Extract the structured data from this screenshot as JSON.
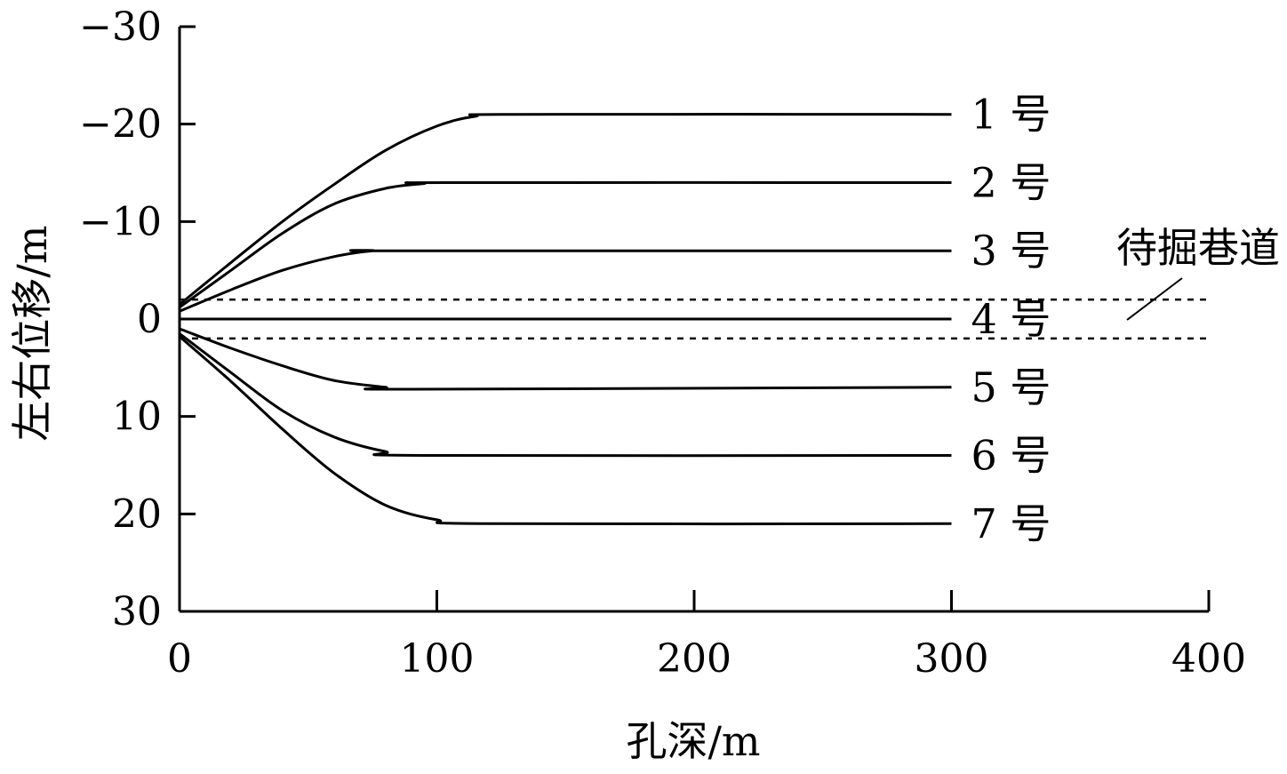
{
  "chart_data": {
    "type": "line",
    "xlabel": "孔深/m",
    "ylabel": "左右位移/m",
    "xlim": [
      0,
      400
    ],
    "ylim": [
      -30,
      30
    ],
    "y_inverted": true,
    "x_ticks": [
      0,
      100,
      200,
      300,
      400
    ],
    "y_ticks": [
      -30,
      -20,
      -10,
      0,
      10,
      20,
      30
    ],
    "x_tick_labels": [
      "0",
      "100",
      "200",
      "300",
      "400"
    ],
    "y_tick_labels": [
      "−30",
      "−20",
      "−10",
      "0",
      "10",
      "20",
      "30"
    ],
    "grid": false,
    "series": [
      {
        "name": "1 号",
        "x": [
          0,
          20,
          40,
          60,
          80,
          100,
          115,
          130,
          300
        ],
        "y": [
          -1.5,
          -5.8,
          -10,
          -13.8,
          -17.3,
          -19.8,
          -20.8,
          -21,
          -21
        ]
      },
      {
        "name": "2 号",
        "x": [
          0,
          20,
          40,
          60,
          80,
          95,
          105,
          300
        ],
        "y": [
          -1.2,
          -5,
          -8.8,
          -11.8,
          -13.4,
          -13.9,
          -14,
          -14
        ]
      },
      {
        "name": "3 号",
        "x": [
          0,
          20,
          40,
          60,
          75,
          85,
          300
        ],
        "y": [
          -0.8,
          -3,
          -5,
          -6.4,
          -7,
          -7,
          -7
        ]
      },
      {
        "name": "4 号",
        "x": [
          0,
          300
        ],
        "y": [
          0,
          0
        ]
      },
      {
        "name": "5 号",
        "x": [
          0,
          20,
          40,
          60,
          80,
          90,
          300
        ],
        "y": [
          1,
          3,
          4.8,
          6.3,
          7,
          7.2,
          7
        ]
      },
      {
        "name": "6 号",
        "x": [
          0,
          20,
          40,
          60,
          80,
          95,
          300
        ],
        "y": [
          1.5,
          5.5,
          9.4,
          12.1,
          13.6,
          14,
          14
        ]
      },
      {
        "name": "7 号",
        "x": [
          0,
          20,
          40,
          60,
          80,
          100,
          120,
          300
        ],
        "y": [
          1.8,
          6.4,
          11.3,
          15.8,
          19.1,
          20.6,
          21,
          21
        ]
      }
    ],
    "reference_lines": [
      {
        "style": "dashed",
        "y": -2,
        "x_range": [
          0,
          400
        ]
      },
      {
        "style": "dashed",
        "y": 2,
        "x_range": [
          0,
          400
        ]
      }
    ],
    "annotation": {
      "text": "待掘巷道",
      "points_to_y": 0
    }
  }
}
